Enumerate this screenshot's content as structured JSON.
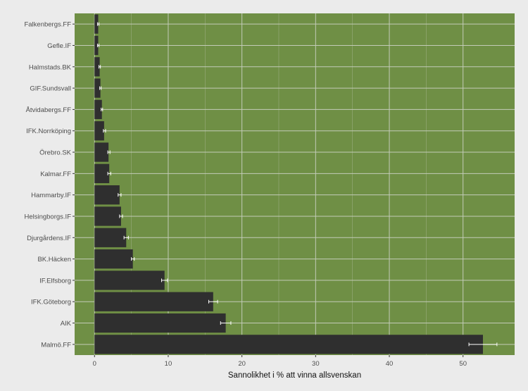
{
  "chart_data": {
    "type": "bar",
    "orientation": "horizontal",
    "title": "",
    "xlabel": "Sannolikhet i % att vinna allsvenskan",
    "ylabel": "",
    "xlim": [
      -2.7,
      57.0
    ],
    "x_ticks": [
      0,
      10,
      20,
      30,
      40,
      50
    ],
    "grid": true,
    "legend": "none",
    "colors": {
      "panel": "#6f8f45",
      "grid": "#c3cbb8",
      "bar": "#2f2f2f",
      "errorbar": "#ffffff",
      "background": "#ebebeb",
      "text": "#4d4d4d"
    },
    "categories": [
      "Falkenbergs.FF",
      "Gefle.IF",
      "Halmstads.BK",
      "GIF.Sundsvall",
      "Åtvidabergs.FF",
      "IFK.Norrköping",
      "Örebro.SK",
      "Kalmar.FF",
      "Hammarby.IF",
      "Helsingborgs.IF",
      "Djurgårdens.IF",
      "BK.Häcken",
      "IF.Elfsborg",
      "IFK.Göteborg",
      "AIK",
      "Malmö.FF"
    ],
    "values": [
      0.5,
      0.5,
      0.7,
      0.8,
      1.0,
      1.3,
      1.9,
      2.0,
      3.4,
      3.6,
      4.3,
      5.2,
      9.5,
      16.1,
      17.8,
      52.7
    ],
    "err_lower": [
      0.4,
      0.4,
      0.6,
      0.7,
      0.9,
      1.2,
      1.8,
      1.8,
      3.2,
      3.4,
      4.0,
      5.0,
      9.1,
      15.5,
      17.1,
      50.8
    ],
    "err_upper": [
      0.6,
      0.6,
      0.8,
      0.9,
      1.1,
      1.5,
      2.1,
      2.2,
      3.6,
      3.8,
      4.6,
      5.4,
      9.9,
      16.7,
      18.5,
      54.6
    ]
  }
}
